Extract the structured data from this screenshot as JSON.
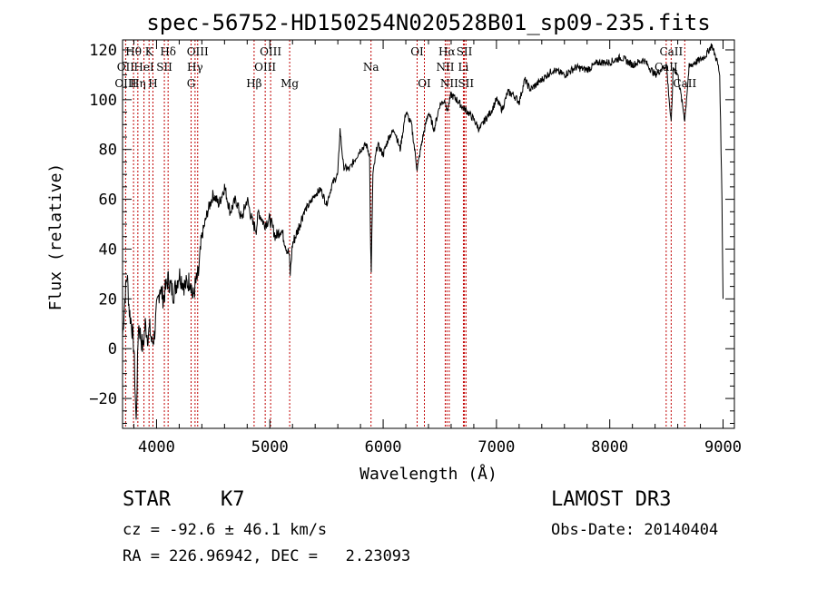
{
  "chart_data": {
    "type": "line",
    "title": "spec-56752-HD150254N020528B01_sp09-235.fits",
    "xlabel": "Wavelength (Å)",
    "ylabel": "Flux (relative)",
    "xlim": [
      3700,
      9100
    ],
    "ylim": [
      -32,
      124
    ],
    "xticks": [
      4000,
      5000,
      6000,
      7000,
      8000,
      9000
    ],
    "yticks": [
      -20,
      0,
      20,
      40,
      60,
      80,
      100,
      120
    ],
    "grid": false,
    "series": [
      {
        "name": "flux",
        "x": [
          3700,
          3720,
          3740,
          3760,
          3780,
          3800,
          3820,
          3840,
          3860,
          3880,
          3900,
          3920,
          3940,
          3960,
          3980,
          4000,
          4030,
          4060,
          4100,
          4150,
          4200,
          4250,
          4300,
          4320,
          4340,
          4370,
          4400,
          4450,
          4500,
          4550,
          4600,
          4650,
          4700,
          4750,
          4800,
          4850,
          4880,
          4900,
          4950,
          5000,
          5050,
          5100,
          5150,
          5170,
          5180,
          5200,
          5250,
          5300,
          5350,
          5400,
          5450,
          5500,
          5550,
          5600,
          5620,
          5650,
          5700,
          5750,
          5800,
          5850,
          5880,
          5890,
          5895,
          5900,
          5910,
          5950,
          6000,
          6050,
          6100,
          6150,
          6200,
          6250,
          6300,
          6350,
          6400,
          6450,
          6500,
          6550,
          6563,
          6600,
          6650,
          6700,
          6750,
          6800,
          6850,
          6900,
          6950,
          7000,
          7050,
          7100,
          7150,
          7200,
          7250,
          7300,
          7400,
          7500,
          7600,
          7700,
          7800,
          7900,
          8000,
          8100,
          8200,
          8300,
          8400,
          8500,
          8542,
          8560,
          8600,
          8662,
          8700,
          8750,
          8800,
          8850,
          8900,
          8950,
          8970,
          8990,
          9000
        ],
        "y": [
          5,
          20,
          30,
          15,
          10,
          0,
          -30,
          10,
          5,
          0,
          10,
          5,
          8,
          2,
          5,
          15,
          25,
          20,
          28,
          22,
          30,
          25,
          28,
          20,
          25,
          30,
          45,
          55,
          62,
          58,
          65,
          55,
          60,
          52,
          60,
          50,
          48,
          55,
          50,
          52,
          45,
          48,
          40,
          38,
          30,
          42,
          48,
          55,
          58,
          62,
          64,
          58,
          66,
          70,
          88,
          73,
          72,
          76,
          80,
          82,
          78,
          40,
          30,
          45,
          70,
          82,
          78,
          85,
          88,
          80,
          95,
          90,
          72,
          85,
          95,
          88,
          98,
          100,
          95,
          102,
          100,
          97,
          95,
          92,
          88,
          92,
          95,
          100,
          96,
          103,
          102,
          99,
          108,
          104,
          108,
          112,
          110,
          113,
          112,
          115,
          115,
          117,
          114,
          116,
          110,
          114,
          90,
          113,
          110,
          92,
          113,
          115,
          116,
          118,
          122,
          115,
          110,
          60,
          20
        ]
      }
    ],
    "line_markers": [
      {
        "label": "Hθ",
        "wavelength": 3797,
        "row": 1
      },
      {
        "label": "OII",
        "wavelength": 3727,
        "row": 2
      },
      {
        "label": "OIII",
        "wavelength": 3727,
        "row": 3
      },
      {
        "label": "K",
        "wavelength": 3934,
        "row": 1
      },
      {
        "label": "HeI",
        "wavelength": 3889,
        "row": 2
      },
      {
        "label": "Hη",
        "wavelength": 3835,
        "row": 3
      },
      {
        "label": "Hδ",
        "wavelength": 4102,
        "row": 1
      },
      {
        "label": "SII",
        "wavelength": 4069,
        "row": 2
      },
      {
        "label": "H",
        "wavelength": 3968,
        "row": 3
      },
      {
        "label": "OIII",
        "wavelength": 4363,
        "row": 1
      },
      {
        "label": "Hγ",
        "wavelength": 4340,
        "row": 2
      },
      {
        "label": "G",
        "wavelength": 4305,
        "row": 3
      },
      {
        "label": "OIII",
        "wavelength": 5007,
        "row": 1
      },
      {
        "label": "OIII",
        "wavelength": 4959,
        "row": 2
      },
      {
        "label": "Hβ",
        "wavelength": 4861,
        "row": 3
      },
      {
        "label": "Mg",
        "wavelength": 5175,
        "row": 3
      },
      {
        "label": "Na",
        "wavelength": 5893,
        "row": 2
      },
      {
        "label": "OI",
        "wavelength": 6300,
        "row": 1
      },
      {
        "label": "OI",
        "wavelength": 6364,
        "row": 3
      },
      {
        "label": "Hα",
        "wavelength": 6563,
        "row": 1
      },
      {
        "label": "SII",
        "wavelength": 6717,
        "row": 1
      },
      {
        "label": "NII",
        "wavelength": 6548,
        "row": 2
      },
      {
        "label": "Li",
        "wavelength": 6708,
        "row": 2
      },
      {
        "label": "NII",
        "wavelength": 6583,
        "row": 3
      },
      {
        "label": "SII",
        "wavelength": 6731,
        "row": 3
      },
      {
        "label": "CaII",
        "wavelength": 8542,
        "row": 1
      },
      {
        "label": "CaII",
        "wavelength": 8498,
        "row": 2
      },
      {
        "label": "CaII",
        "wavelength": 8662,
        "row": 3
      }
    ]
  },
  "info": {
    "object_class": "STAR",
    "subclass": "K7",
    "survey": "LAMOST DR3",
    "redshift": "cz = -92.6 ± 46.1 km/s",
    "obs_date": "Obs-Date: 20140404",
    "coords": "RA = 226.96942, DEC =   2.23093"
  }
}
